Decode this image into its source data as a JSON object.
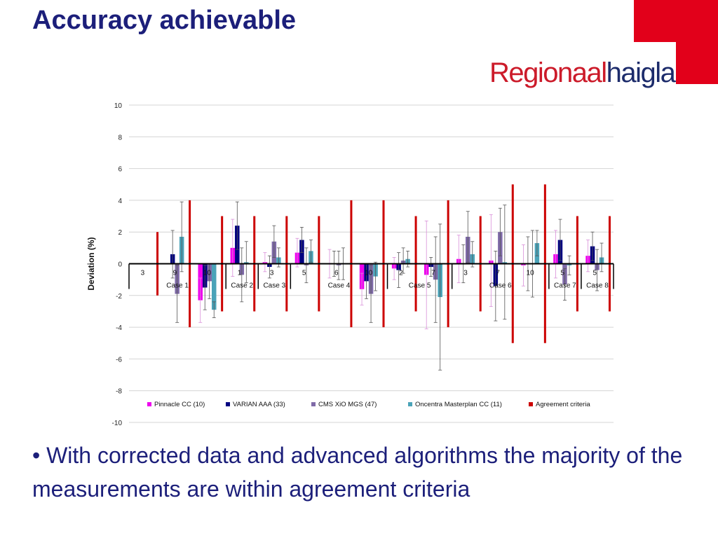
{
  "slide": {
    "title": "Accuracy achievable",
    "bullet_glyph": "•",
    "bullet_text": "With corrected data and advanced algorithms the majority of the measurements are within agreement criteria"
  },
  "logo": {
    "part1": "Regionaal",
    "part2": "haigla",
    "part1_color": "#cc1b2a",
    "part2_color": "#1c2b6b"
  },
  "accent_color": "#e2001a",
  "chart_data": {
    "type": "bar",
    "title": "",
    "xlabel": "",
    "ylabel": "Deviation (%)",
    "ylim": [
      -10,
      10
    ],
    "yticks": [
      10,
      8,
      6,
      4,
      2,
      0,
      -2,
      -4,
      -6,
      -8,
      -10
    ],
    "grid": true,
    "legend_position": "bottom-inside",
    "categories": [
      "3",
      "9",
      "10",
      "1",
      "3",
      "5",
      "6",
      "10",
      "2",
      "7",
      "3",
      "7",
      "10",
      "5",
      "5"
    ],
    "case_groups": [
      {
        "label": "Case 1",
        "start": 0,
        "end": 2
      },
      {
        "label": "Case 2",
        "start": 3,
        "end": 3
      },
      {
        "label": "Case 3",
        "start": 4,
        "end": 4
      },
      {
        "label": "Case 4",
        "start": 5,
        "end": 7
      },
      {
        "label": "Case 5",
        "start": 8,
        "end": 9
      },
      {
        "label": "Case 6",
        "start": 10,
        "end": 12
      },
      {
        "label": "Case 7",
        "start": 13,
        "end": 13
      },
      {
        "label": "Case 8",
        "start": 14,
        "end": 14
      }
    ],
    "series": [
      {
        "name": "Pinnacle CC (10)",
        "color": "#ee00ee",
        "values": [
          0,
          0,
          -2.3,
          1.0,
          0.1,
          0.7,
          0,
          -1.6,
          -0.3,
          -0.7,
          0.3,
          0.2,
          -0.1,
          0.6,
          0.5
        ],
        "errors": [
          0,
          0,
          1.4,
          1.8,
          0.6,
          0.9,
          0.9,
          1.0,
          0.7,
          3.4,
          1.5,
          2.9,
          1.3,
          1.5,
          1.0
        ]
      },
      {
        "name": "VARIAN AAA (33)",
        "color": "#000080",
        "values": [
          0,
          0.6,
          -1.5,
          2.4,
          -0.2,
          1.5,
          0,
          -1.1,
          -0.4,
          -0.2,
          0,
          -1.4,
          0,
          1.5,
          1.1
        ],
        "errors": [
          0,
          1.5,
          1.4,
          1.5,
          0.7,
          0.8,
          0.8,
          1.1,
          1.1,
          0.6,
          1.2,
          2.2,
          1.7,
          1.3,
          0.9
        ]
      },
      {
        "name": "CMS XiO MGS (47)",
        "color": "#7f6aa8",
        "values": [
          0,
          -1.9,
          -1.1,
          -0.7,
          1.4,
          -0.1,
          -0.1,
          -1.9,
          0.2,
          -1.0,
          1.7,
          2.0,
          0,
          -1.3,
          -0.4
        ],
        "errors": [
          0,
          1.8,
          1.1,
          1.7,
          1.0,
          1.1,
          0.9,
          1.8,
          0.8,
          2.7,
          1.6,
          1.5,
          2.1,
          1.0,
          1.3
        ]
      },
      {
        "name": "Oncentra Masterplan CC (11)",
        "color": "#4aa3b8",
        "values": [
          0,
          1.7,
          -2.9,
          0.1,
          0.4,
          0.8,
          0,
          -0.8,
          0.3,
          -2.1,
          0.6,
          0.1,
          1.3,
          -0.1,
          0.4
        ],
        "errors": [
          0,
          2.2,
          0.5,
          1.3,
          0.6,
          0.7,
          1.0,
          0.9,
          0.5,
          4.6,
          0.8,
          3.6,
          0.8,
          0.6,
          0.9
        ]
      },
      {
        "name": "Agreement criteria",
        "color": "#cc0000",
        "type": "range",
        "values": [
          2,
          4,
          3,
          3,
          3,
          3,
          4,
          4,
          3,
          4,
          3,
          5,
          5,
          3,
          3
        ]
      }
    ]
  }
}
